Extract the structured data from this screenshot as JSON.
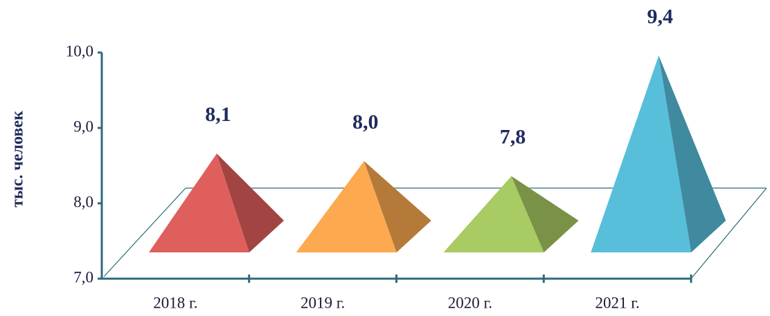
{
  "chart_data": {
    "type": "pyramid",
    "y_label": "тыс. человек",
    "categories": [
      "2018 г.",
      "2019 г.",
      "2020 г.",
      "2021 г."
    ],
    "values": [
      8.1,
      8.0,
      7.8,
      9.4
    ],
    "value_labels": [
      "8,1",
      "8,0",
      "7,8",
      "9,4"
    ],
    "colors": [
      "#df5f5c",
      "#fca94f",
      "#a8cb63",
      "#58bfdb"
    ],
    "ylim": [
      7,
      10
    ],
    "yticks": [
      {
        "value": 7,
        "label": "7,0"
      },
      {
        "value": 8,
        "label": "8,0"
      },
      {
        "value": 9,
        "label": "9,0"
      },
      {
        "value": 10,
        "label": "10,0"
      }
    ]
  }
}
